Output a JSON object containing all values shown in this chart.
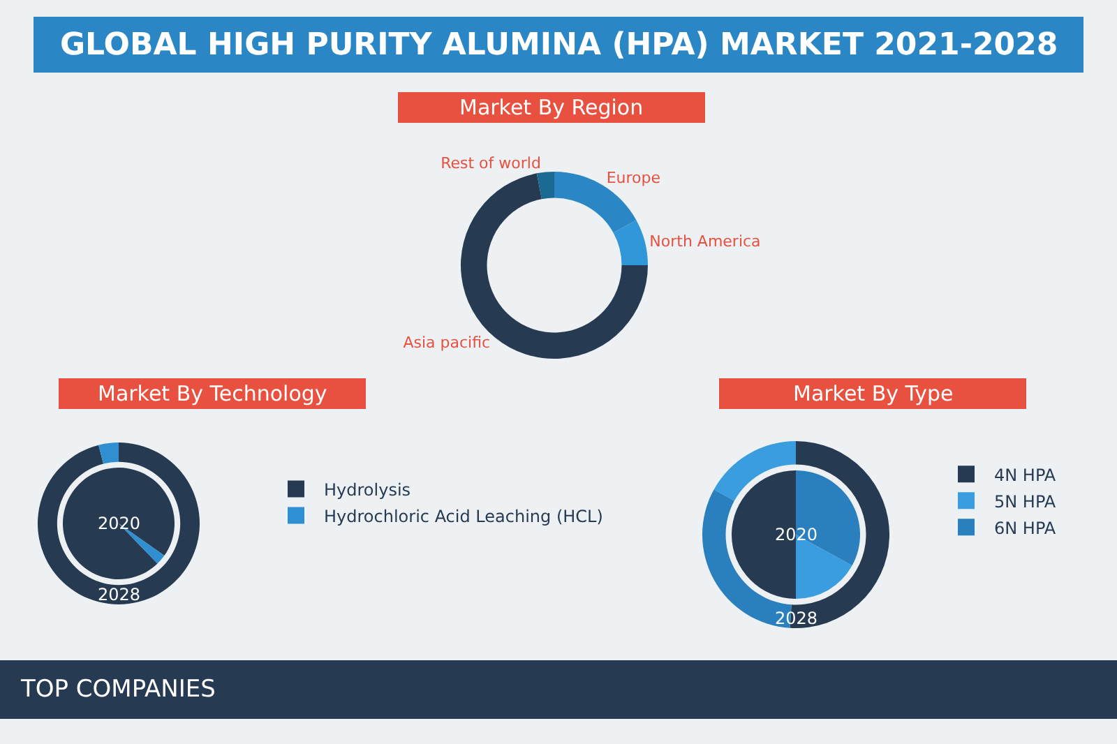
{
  "chart_data": [
    {
      "type": "other",
      "title": "GLOBAL HIGH PURITY ALUMINA (HPA) MARKET 2021-2028",
      "annotations": [
        "TOP COMPANIES"
      ]
    },
    {
      "type": "donut",
      "title": "Market By Region",
      "categories": [
        "Europe",
        "North America",
        "Asia pacific",
        "Rest of world"
      ],
      "values": [
        17,
        8,
        72,
        3
      ],
      "colors": [
        "#2b86c5",
        "#3097d8",
        "#263a52",
        "#1a6a94"
      ],
      "legend": false
    },
    {
      "type": "donut",
      "title": "Market By Technology",
      "categories": [
        "Hydrolysis",
        "Hydrochloric Acid Leaching (HCL)"
      ],
      "colors": [
        "#263a52",
        "#2f8fd0"
      ],
      "legend": "right",
      "series": [
        {
          "name": "2028",
          "values": [
            96,
            4
          ]
        },
        {
          "name": "2020",
          "values": [
            97,
            3
          ]
        }
      ]
    },
    {
      "type": "donut",
      "title": "Market By Type",
      "categories": [
        "4N HPA",
        "5N HPA",
        "6N HPA"
      ],
      "colors": [
        "#263a52",
        "#3a9de0",
        "#2a80bf"
      ],
      "legend": "right",
      "series": [
        {
          "name": "2028",
          "values": [
            51,
            17,
            32
          ]
        },
        {
          "name": "2020",
          "values": [
            50,
            17,
            33
          ]
        }
      ]
    }
  ]
}
